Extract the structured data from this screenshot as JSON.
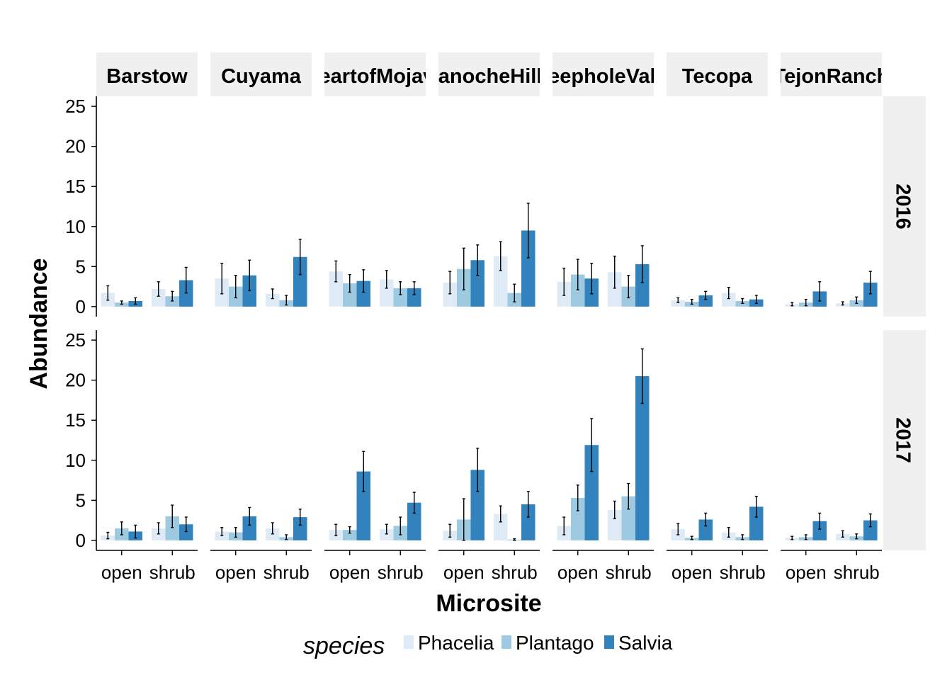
{
  "chart_data": {
    "type": "bar",
    "xlabel": "Microsite",
    "ylabel": "Abundance",
    "ylim": [
      0,
      25
    ],
    "yticks": [
      0,
      5,
      10,
      15,
      20,
      25
    ],
    "grid": false,
    "legend_position": "bottom",
    "legend_title": "species",
    "categories": [
      "open",
      "shrub"
    ],
    "series_names": [
      "Phacelia",
      "Plantago",
      "Salvia"
    ],
    "series_colors": [
      "#deebf7",
      "#9ecae1",
      "#3182bd"
    ],
    "facet_columns": [
      "Barstow",
      "Cuyama",
      "HeartofMojave",
      "PanocheHills",
      "SheepholeValley",
      "Tecopa",
      "TejonRanch"
    ],
    "facet_rows": [
      "2016",
      "2017"
    ],
    "panels": [
      [
        {
          "open": {
            "values": [
              1.7,
              0.5,
              0.7
            ],
            "errors": [
              0.9,
              0.2,
              0.4
            ]
          },
          "shrub": {
            "values": [
              2.2,
              1.3,
              3.3
            ],
            "errors": [
              0.9,
              0.6,
              1.6
            ]
          }
        },
        {
          "open": {
            "values": [
              3.5,
              2.5,
              3.9
            ],
            "errors": [
              1.9,
              1.4,
              1.9
            ]
          },
          "shrub": {
            "values": [
              1.6,
              0.8,
              6.2
            ],
            "errors": [
              0.6,
              0.6,
              2.2
            ]
          }
        },
        {
          "open": {
            "values": [
              4.4,
              2.9,
              3.2
            ],
            "errors": [
              1.3,
              1.1,
              1.4
            ]
          },
          "shrub": {
            "values": [
              3.4,
              2.3,
              2.3
            ],
            "errors": [
              1.1,
              0.8,
              0.8
            ]
          }
        },
        {
          "open": {
            "values": [
              3.0,
              4.7,
              5.8
            ],
            "errors": [
              1.4,
              2.6,
              1.9
            ]
          },
          "shrub": {
            "values": [
              6.3,
              1.7,
              9.5
            ],
            "errors": [
              1.8,
              1.1,
              3.4
            ]
          }
        },
        {
          "open": {
            "values": [
              3.1,
              4.0,
              3.5
            ],
            "errors": [
              1.7,
              1.9,
              1.9
            ]
          },
          "shrub": {
            "values": [
              4.3,
              2.5,
              5.3
            ],
            "errors": [
              2.0,
              1.4,
              2.3
            ]
          }
        },
        {
          "open": {
            "values": [
              0.8,
              0.6,
              1.4
            ],
            "errors": [
              0.3,
              0.3,
              0.5
            ]
          },
          "shrub": {
            "values": [
              1.7,
              0.7,
              0.9
            ],
            "errors": [
              0.7,
              0.3,
              0.5
            ]
          }
        },
        {
          "open": {
            "values": [
              0.3,
              0.5,
              1.9
            ],
            "errors": [
              0.2,
              0.4,
              1.2
            ]
          },
          "shrub": {
            "values": [
              0.4,
              0.8,
              3.0
            ],
            "errors": [
              0.2,
              0.4,
              1.4
            ]
          }
        }
      ],
      [
        {
          "open": {
            "values": [
              0.6,
              1.5,
              1.1
            ],
            "errors": [
              0.4,
              0.8,
              0.8
            ]
          },
          "shrub": {
            "values": [
              1.5,
              3.0,
              2.0
            ],
            "errors": [
              0.7,
              1.4,
              0.9
            ]
          }
        },
        {
          "open": {
            "values": [
              1.1,
              1.0,
              3.0
            ],
            "errors": [
              0.5,
              0.6,
              1.1
            ]
          },
          "shrub": {
            "values": [
              1.5,
              0.4,
              2.9
            ],
            "errors": [
              0.7,
              0.3,
              1.0
            ]
          }
        },
        {
          "open": {
            "values": [
              1.3,
              1.3,
              8.6
            ],
            "errors": [
              0.7,
              0.4,
              2.5
            ]
          },
          "shrub": {
            "values": [
              1.4,
              1.8,
              4.7
            ],
            "errors": [
              0.6,
              1.1,
              1.3
            ]
          }
        },
        {
          "open": {
            "values": [
              1.2,
              2.6,
              8.8
            ],
            "errors": [
              0.8,
              2.6,
              2.7
            ]
          },
          "shrub": {
            "values": [
              3.3,
              0.1,
              4.5
            ],
            "errors": [
              1.0,
              0.1,
              1.6
            ]
          }
        },
        {
          "open": {
            "values": [
              1.8,
              5.3,
              11.9
            ],
            "errors": [
              1.1,
              1.6,
              3.3
            ]
          },
          "shrub": {
            "values": [
              3.8,
              5.5,
              20.5
            ],
            "errors": [
              1.1,
              1.6,
              3.4
            ]
          }
        },
        {
          "open": {
            "values": [
              1.4,
              0.3,
              2.6
            ],
            "errors": [
              0.7,
              0.2,
              0.8
            ]
          },
          "shrub": {
            "values": [
              1.0,
              0.4,
              4.2
            ],
            "errors": [
              0.6,
              0.3,
              1.3
            ]
          }
        },
        {
          "open": {
            "values": [
              0.3,
              0.4,
              2.4
            ],
            "errors": [
              0.2,
              0.3,
              1.0
            ]
          },
          "shrub": {
            "values": [
              0.8,
              0.5,
              2.5
            ],
            "errors": [
              0.4,
              0.3,
              0.8
            ]
          }
        }
      ]
    ]
  }
}
